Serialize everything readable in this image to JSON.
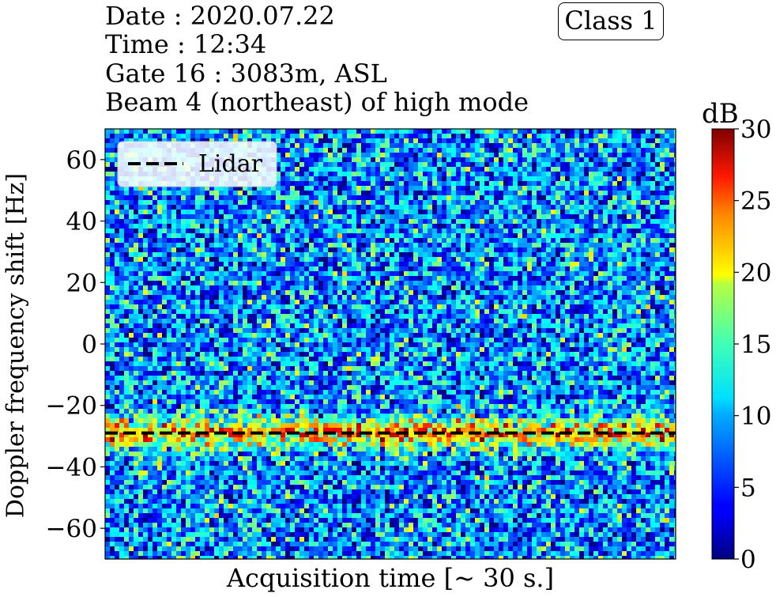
{
  "header": {
    "date": "Date : 2020.07.22",
    "time": "Time : 12:34",
    "gate": "Gate 16 : 3083m, ASL",
    "beam": "Beam 4 (northeast) of high mode",
    "class_badge": "Class 1"
  },
  "chart_data": {
    "type": "heatmap",
    "xlabel": "Acquisition time [~ 30 s.]",
    "ylabel": "Doppler frequency shift [Hz]",
    "ylim": [
      -70,
      70
    ],
    "yticks": [
      60,
      40,
      20,
      0,
      -20,
      -40,
      -60
    ],
    "xticks": [],
    "colormap": "jet",
    "colorbar": {
      "label": "dB",
      "range": [
        0,
        30
      ],
      "ticks": [
        0,
        5,
        10,
        15,
        20,
        25,
        30
      ]
    },
    "background_level_db": 8,
    "signal_band": {
      "center_hz": -29,
      "peak_db": 24
    },
    "series": [
      {
        "name": "Lidar",
        "style": "dashed",
        "color": "#000000",
        "y_hz": -29
      }
    ],
    "legend": {
      "entries": [
        "Lidar"
      ],
      "placement": "top-left"
    },
    "grid": false
  }
}
